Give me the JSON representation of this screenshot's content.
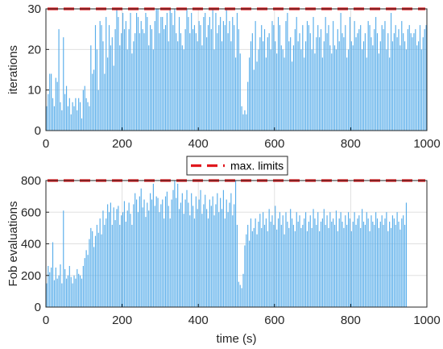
{
  "legend": {
    "label": "max. limits"
  },
  "colors": {
    "bar": "#5aaeea",
    "limit": "#e0191e",
    "grid": "#e0e0e0",
    "axis": "#262626"
  },
  "chart_data": [
    {
      "type": "bar",
      "xlabel": "",
      "ylabel": "iterations",
      "xlim": [
        0,
        1000
      ],
      "ylim": [
        0,
        30
      ],
      "xticks": [
        0,
        200,
        400,
        600,
        800,
        1000
      ],
      "yticks": [
        0,
        10,
        20,
        30
      ],
      "grid": true,
      "limit_line": {
        "name": "max. limits",
        "value": 30
      },
      "series": [
        {
          "x_start": 2,
          "x_step": 4,
          "values": [
            6,
            9,
            14,
            14,
            8,
            6,
            13,
            12,
            25,
            7,
            5,
            23,
            9,
            11,
            6,
            8,
            4,
            7,
            6,
            8,
            5,
            8,
            7,
            3,
            10,
            11,
            8,
            7,
            6,
            21,
            14,
            15,
            26,
            20,
            10,
            27,
            26,
            22,
            14,
            28,
            18,
            26,
            21,
            23,
            16,
            25,
            30,
            28,
            21,
            24,
            29,
            25,
            27,
            20,
            25,
            29,
            19,
            22,
            24,
            29,
            28,
            24,
            27,
            25,
            24,
            29,
            28,
            21,
            26,
            25,
            20,
            27,
            30,
            30,
            24,
            28,
            28,
            25,
            26,
            29,
            22,
            30,
            29,
            26,
            30,
            24,
            22,
            28,
            24,
            21,
            20,
            25,
            30,
            28,
            24,
            29,
            25,
            26,
            24,
            22,
            27,
            26,
            21,
            28,
            29,
            23,
            26,
            28,
            25,
            30,
            20,
            29,
            24,
            26,
            28,
            22,
            27,
            26,
            30,
            24,
            27,
            22,
            28,
            26,
            18,
            29,
            25,
            19,
            6,
            4,
            5,
            4,
            12,
            18,
            22,
            24,
            15,
            27,
            17,
            20,
            23,
            26,
            22,
            25,
            18,
            23,
            24,
            20,
            27,
            26,
            22,
            19,
            28,
            26,
            21,
            20,
            18,
            27,
            29,
            22,
            23,
            17,
            21,
            25,
            28,
            22,
            24,
            20,
            26,
            18,
            22,
            27,
            26,
            24,
            20,
            28,
            19,
            23,
            26,
            23,
            25,
            18,
            22,
            28,
            24,
            26,
            21,
            19,
            27,
            21,
            20,
            25,
            22,
            29,
            24,
            23,
            26,
            18,
            20,
            28,
            22,
            21,
            27,
            23,
            24,
            25,
            26,
            20,
            22,
            24,
            18,
            27,
            26,
            23,
            21,
            25,
            28,
            24,
            19,
            22,
            26,
            25,
            27,
            20,
            24,
            18,
            29,
            22,
            24,
            26,
            23,
            25,
            21,
            27,
            24,
            22,
            20,
            25,
            26,
            24,
            23,
            24,
            25,
            21,
            22,
            26,
            20,
            23,
            25,
            26
          ]
        }
      ]
    },
    {
      "type": "bar",
      "xlabel": "time (s)",
      "ylabel": "Fob evaluations",
      "xlim": [
        0,
        1000
      ],
      "ylim": [
        0,
        800
      ],
      "xticks": [
        0,
        200,
        400,
        600,
        800,
        1000
      ],
      "yticks": [
        0,
        200,
        400,
        600,
        800
      ],
      "grid": true,
      "limit_line": {
        "name": "max. limits",
        "value": 800
      },
      "series": [
        {
          "x_start": 2,
          "x_step": 4,
          "values": [
            150,
            260,
            220,
            250,
            410,
            170,
            250,
            180,
            200,
            270,
            150,
            610,
            240,
            180,
            200,
            260,
            190,
            150,
            200,
            180,
            240,
            210,
            200,
            180,
            260,
            310,
            360,
            330,
            430,
            500,
            480,
            380,
            450,
            520,
            470,
            560,
            460,
            610,
            520,
            560,
            650,
            600,
            660,
            520,
            630,
            550,
            620,
            640,
            520,
            580,
            600,
            670,
            540,
            610,
            660,
            590,
            520,
            650,
            720,
            680,
            600,
            700,
            750,
            630,
            680,
            570,
            660,
            610,
            720,
            680,
            780,
            640,
            700,
            690,
            600,
            650,
            680,
            560,
            700,
            730,
            640,
            560,
            680,
            740,
            800,
            690,
            780,
            620,
            660,
            720,
            590,
            680,
            740,
            660,
            580,
            720,
            640,
            560,
            700,
            620,
            680,
            740,
            590,
            650,
            710,
            620,
            560,
            680,
            640,
            700,
            580,
            650,
            720,
            600,
            690,
            620,
            740,
            560,
            680,
            600,
            660,
            720,
            580,
            650,
            800,
            520,
            160,
            140,
            120,
            210,
            390,
            460,
            520,
            420,
            560,
            480,
            500,
            560,
            460,
            540,
            590,
            500,
            600,
            520,
            560,
            480,
            620,
            540,
            580,
            520,
            640,
            490,
            560,
            600,
            520,
            580,
            460,
            600,
            540,
            500,
            620,
            560,
            520,
            480,
            600,
            540,
            580,
            500,
            520,
            560,
            600,
            480,
            540,
            580,
            500,
            620,
            560,
            520,
            600,
            480,
            540,
            560,
            620,
            520,
            580,
            500,
            600,
            540,
            560,
            520,
            610,
            480,
            560,
            600,
            540,
            500,
            580,
            520,
            600,
            560,
            480,
            540,
            600,
            520,
            560,
            580,
            500,
            620,
            540,
            520,
            600,
            560,
            480,
            580,
            540,
            520,
            600,
            560,
            500,
            540,
            580,
            520,
            560,
            600,
            480,
            540,
            500,
            580,
            560,
            520,
            600,
            540,
            490,
            560,
            580,
            520,
            660
          ]
        }
      ]
    }
  ]
}
